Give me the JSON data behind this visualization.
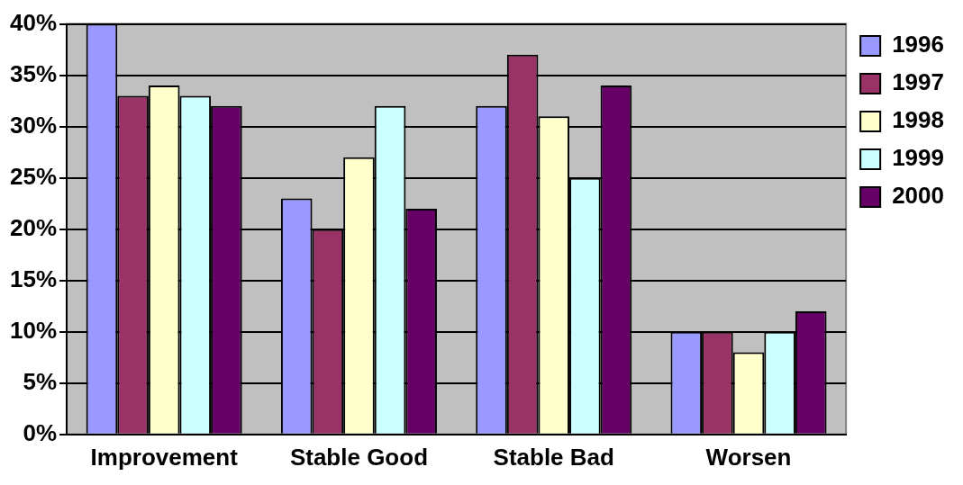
{
  "chart_data": {
    "type": "bar",
    "categories": [
      "Improvement",
      "Stable Good",
      "Stable Bad",
      "Worsen"
    ],
    "series": [
      {
        "name": "1996",
        "color": "#9999ff",
        "values": [
          40,
          23,
          32,
          10
        ]
      },
      {
        "name": "1997",
        "color": "#993366",
        "values": [
          33,
          20,
          37,
          10
        ]
      },
      {
        "name": "1998",
        "color": "#ffffcc",
        "values": [
          34,
          27,
          31,
          8
        ]
      },
      {
        "name": "1999",
        "color": "#ccffff",
        "values": [
          33,
          32,
          25,
          10
        ]
      },
      {
        "name": "2000",
        "color": "#660066",
        "values": [
          32,
          22,
          34,
          12
        ]
      }
    ],
    "ylim": [
      0,
      40
    ],
    "yticks": [
      {
        "value": 0,
        "label": "0%"
      },
      {
        "value": 5,
        "label": "5%"
      },
      {
        "value": 10,
        "label": "10%"
      },
      {
        "value": 15,
        "label": "15%"
      },
      {
        "value": 20,
        "label": "20%"
      },
      {
        "value": 25,
        "label": "25%"
      },
      {
        "value": 30,
        "label": "30%"
      },
      {
        "value": 35,
        "label": "35%"
      },
      {
        "value": 40,
        "label": "40%"
      }
    ],
    "grid": "y",
    "legend": "top right"
  }
}
